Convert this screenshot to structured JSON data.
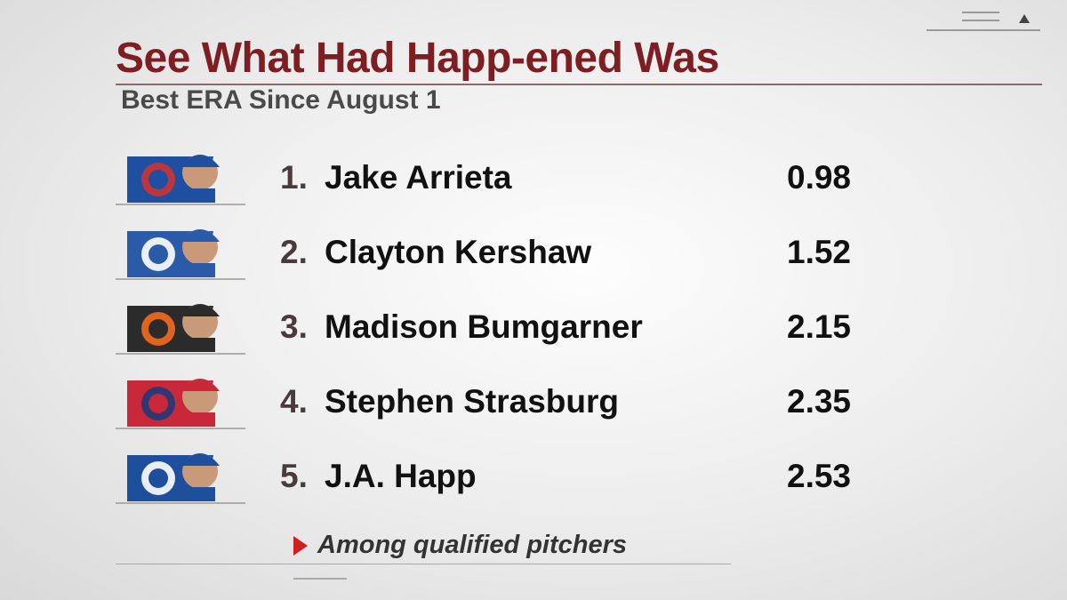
{
  "header": {
    "title": "See What Had Happ-ened Was",
    "subtitle": "Best ERA Since August 1"
  },
  "table": {
    "rows": [
      {
        "rank": "1.",
        "name": "Jake Arrieta",
        "era": "0.98"
      },
      {
        "rank": "2.",
        "name": "Clayton Kershaw",
        "era": "1.52"
      },
      {
        "rank": "3.",
        "name": "Madison Bumgarner",
        "era": "2.15"
      },
      {
        "rank": "4.",
        "name": "Stephen Strasburg",
        "era": "2.35"
      },
      {
        "rank": "5.",
        "name": "J.A. Happ",
        "era": "2.53"
      }
    ]
  },
  "footnote": "Among qualified pitchers"
}
